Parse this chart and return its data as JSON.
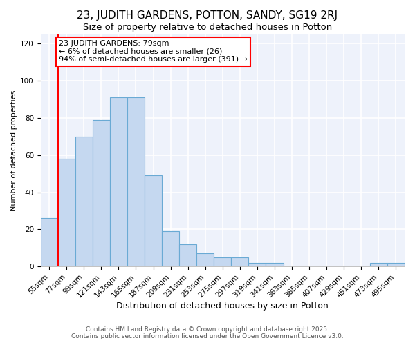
{
  "title": "23, JUDITH GARDENS, POTTON, SANDY, SG19 2RJ",
  "subtitle": "Size of property relative to detached houses in Potton",
  "xlabel": "Distribution of detached houses by size in Potton",
  "ylabel": "Number of detached properties",
  "categories": [
    "55sqm",
    "77sqm",
    "99sqm",
    "121sqm",
    "143sqm",
    "165sqm",
    "187sqm",
    "209sqm",
    "231sqm",
    "253sqm",
    "275sqm",
    "297sqm",
    "319sqm",
    "341sqm",
    "363sqm",
    "385sqm",
    "407sqm",
    "429sqm",
    "451sqm",
    "473sqm",
    "495sqm"
  ],
  "values": [
    26,
    58,
    70,
    79,
    91,
    91,
    49,
    19,
    12,
    7,
    5,
    5,
    2,
    2,
    0,
    0,
    0,
    0,
    0,
    2,
    2
  ],
  "bar_color": "#c5d8f0",
  "bar_edge_color": "#6aaad4",
  "annotation_text": "23 JUDITH GARDENS: 79sqm\n← 6% of detached houses are smaller (26)\n94% of semi-detached houses are larger (391) →",
  "ylim": [
    0,
    125
  ],
  "yticks": [
    0,
    20,
    40,
    60,
    80,
    100,
    120
  ],
  "background_color": "#eef2fb",
  "grid_color": "white",
  "footer_line1": "Contains HM Land Registry data © Crown copyright and database right 2025.",
  "footer_line2": "Contains public sector information licensed under the Open Government Licence v3.0.",
  "red_line_index": 1,
  "title_fontsize": 11,
  "subtitle_fontsize": 9.5,
  "xlabel_fontsize": 9,
  "ylabel_fontsize": 8,
  "tick_fontsize": 7.5,
  "annotation_fontsize": 8,
  "footer_fontsize": 6.5
}
